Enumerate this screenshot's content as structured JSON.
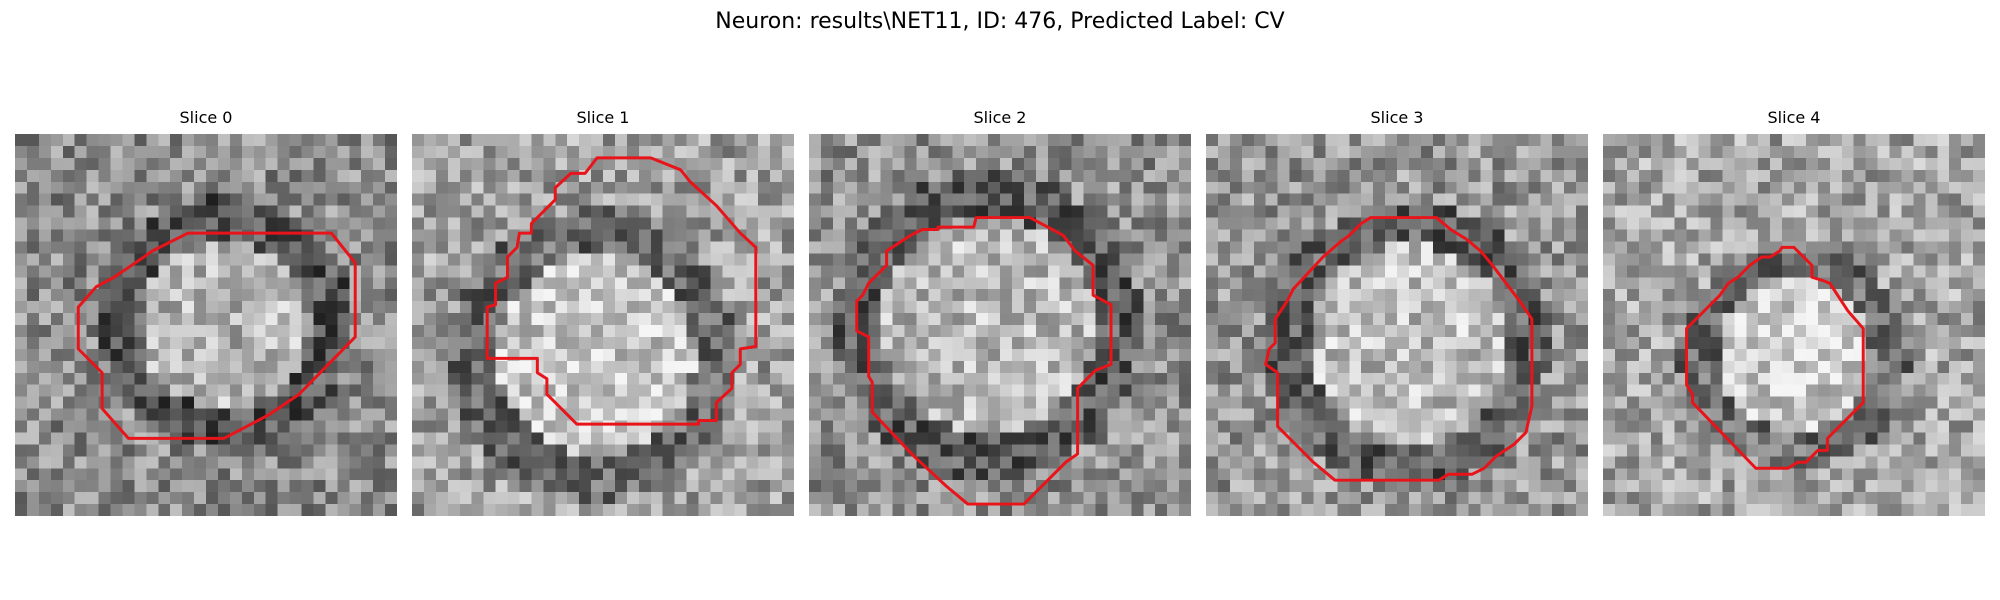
{
  "figure": {
    "title": "Neuron: results\\NET11, ID: 476, Predicted Label: CV"
  },
  "panels": [
    {
      "title": "Slice 0"
    },
    {
      "title": "Slice 1"
    },
    {
      "title": "Slice 2"
    },
    {
      "title": "Slice 3"
    },
    {
      "title": "Slice 4"
    }
  ],
  "colors": {
    "contour": "#e8141a",
    "background": "#ffffff"
  }
}
